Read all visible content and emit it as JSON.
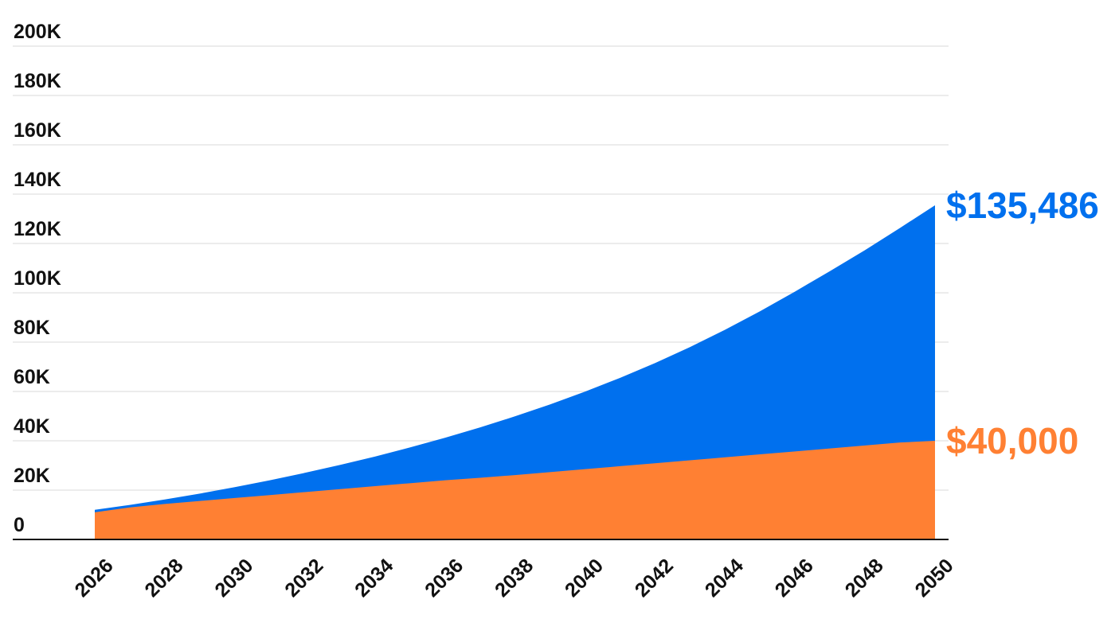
{
  "chart_data": {
    "type": "area",
    "x": [
      2026,
      2027,
      2028,
      2029,
      2030,
      2031,
      2032,
      2033,
      2034,
      2035,
      2036,
      2037,
      2038,
      2039,
      2040,
      2041,
      2042,
      2043,
      2044,
      2045,
      2046,
      2047,
      2048,
      2049,
      2050
    ],
    "x_tick_labels": [
      "2026",
      "2028",
      "2030",
      "2032",
      "2034",
      "2036",
      "2038",
      "2040",
      "2042",
      "2044",
      "2046",
      "2048",
      "2050"
    ],
    "y_tick_labels": [
      "0",
      "20K",
      "40K",
      "60K",
      "80K",
      "100K",
      "120K",
      "140K",
      "160K",
      "180K",
      "200K"
    ],
    "ylim": [
      0,
      200000
    ],
    "xlim": [
      2026,
      2050
    ],
    "grid": true,
    "stacking": "overlay",
    "series": [
      {
        "color": "#0070EE",
        "end_label": "$135,486",
        "values": [
          12000,
          14000,
          16200,
          18600,
          21200,
          24000,
          27000,
          30200,
          33600,
          37300,
          41200,
          45400,
          49900,
          54700,
          59900,
          65500,
          71500,
          78000,
          85000,
          92500,
          100500,
          108800,
          117300,
          126300,
          135486
        ]
      },
      {
        "color": "#FF8033",
        "end_label": "$40,000",
        "values": [
          11000,
          13000,
          14400,
          15600,
          16800,
          18000,
          19200,
          20400,
          21600,
          22800,
          24000,
          25000,
          26100,
          27300,
          28500,
          29700,
          30900,
          32100,
          33300,
          34500,
          35700,
          36900,
          38100,
          39300,
          40000
        ]
      }
    ]
  }
}
